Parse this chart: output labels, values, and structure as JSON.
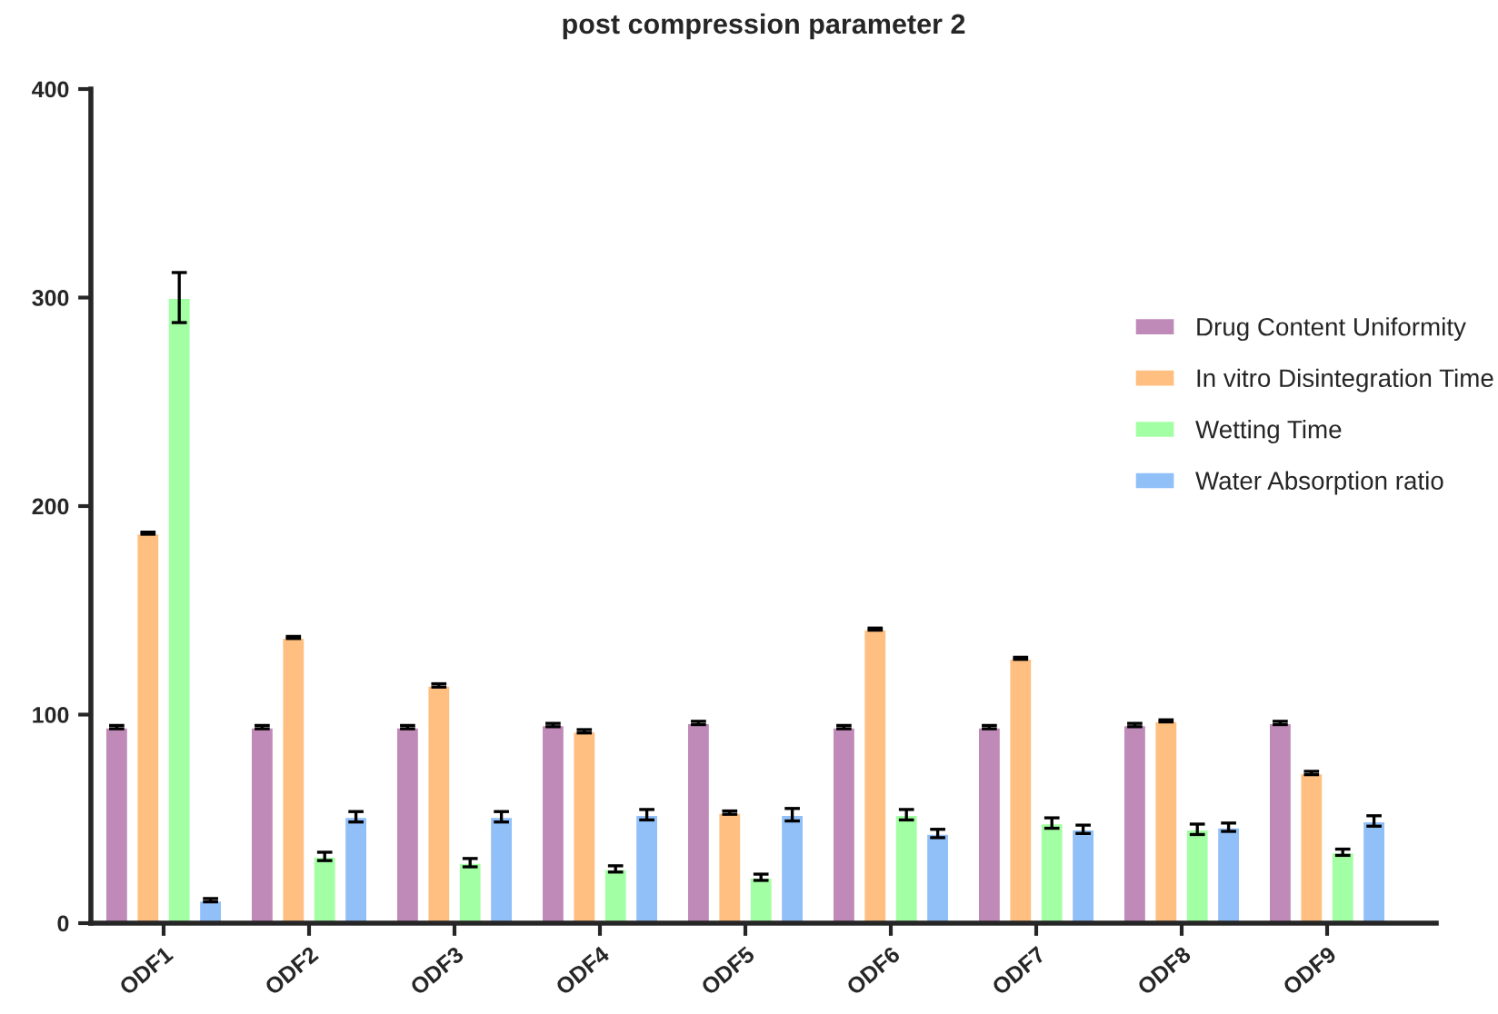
{
  "chart_data": {
    "type": "bar",
    "title": "post compression parameter 2",
    "categories": [
      "ODF1",
      "ODF2",
      "ODF3",
      "ODF4",
      "ODF5",
      "ODF6",
      "ODF7",
      "ODF8",
      "ODF9"
    ],
    "series": [
      {
        "name": "Drug Content Uniformity",
        "color": "#c08ab8",
        "values": [
          94,
          94,
          94,
          95,
          96,
          94,
          94,
          95,
          96
        ],
        "errors": [
          0.8,
          0.8,
          0.8,
          0.8,
          0.8,
          0.8,
          0.8,
          0.8,
          0.8
        ]
      },
      {
        "name": "In vitro Disintegration Time",
        "color": "#ffbf80",
        "values": [
          187,
          137,
          114,
          92,
          53,
          141,
          127,
          97,
          72
        ],
        "errors": [
          0.5,
          0.5,
          0.8,
          0.8,
          0.8,
          0.5,
          0.5,
          0.5,
          0.8
        ]
      },
      {
        "name": "Wetting Time",
        "color": "#a3ffa3",
        "values": [
          300,
          32,
          29,
          26,
          22,
          52,
          48,
          45,
          34
        ],
        "errors": [
          12,
          2,
          2,
          1.5,
          1.5,
          2.5,
          2.5,
          2.5,
          1.5
        ]
      },
      {
        "name": "Water Absorption ratio",
        "color": "#91bff8",
        "values": [
          11,
          51,
          51,
          52,
          52,
          43,
          45,
          46,
          49
        ],
        "errors": [
          0.8,
          2.5,
          2.5,
          2.5,
          3,
          2,
          2,
          2,
          2.5
        ]
      }
    ],
    "ylim": [
      0,
      400
    ],
    "yticks": [
      0,
      100,
      200,
      300,
      400
    ],
    "legend": "right",
    "grid": false
  }
}
